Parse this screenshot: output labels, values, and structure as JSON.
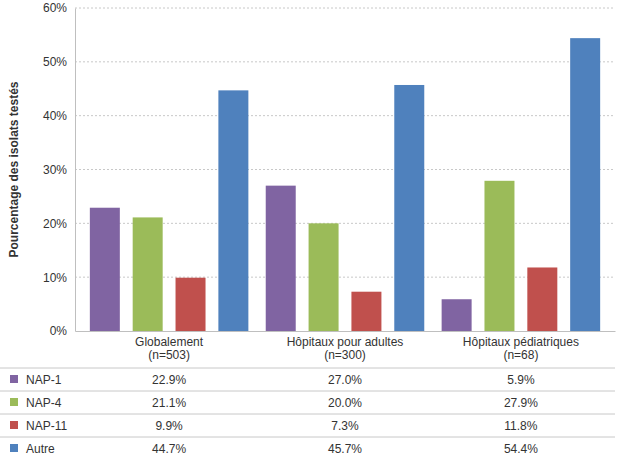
{
  "chart_data": {
    "type": "bar",
    "y_label": "Pourcentage des isolats testés",
    "categories": [
      "Globalement\n(n=503)",
      "Hôpitaux pour adultes\n(n=300)",
      "Hôpitaux pédiatriques\n(n=68)"
    ],
    "series": [
      {
        "name": "NAP-1",
        "color": "#8064a2",
        "values": [
          22.9,
          27.0,
          5.9
        ],
        "value_labels": [
          "22.9%",
          "27.0%",
          "5.9%"
        ]
      },
      {
        "name": "NAP-4",
        "color": "#9bbb59",
        "values": [
          21.1,
          20.0,
          27.9
        ],
        "value_labels": [
          "21.1%",
          "20.0%",
          "27.9%"
        ]
      },
      {
        "name": "NAP-11",
        "color": "#c0504d",
        "values": [
          9.9,
          7.3,
          11.8
        ],
        "value_labels": [
          "9.9%",
          "7.3%",
          "11.8%"
        ]
      },
      {
        "name": "Autre",
        "color": "#4f81bd",
        "values": [
          44.7,
          45.7,
          54.4
        ],
        "value_labels": [
          "44.7%",
          "45.7%",
          "54.4%"
        ]
      }
    ],
    "ylim": [
      0,
      60
    ],
    "yticks": [
      {
        "value": 0,
        "label": "0%"
      },
      {
        "value": 10,
        "label": "10%"
      },
      {
        "value": 20,
        "label": "20%"
      },
      {
        "value": 30,
        "label": "30%"
      },
      {
        "value": 40,
        "label": "40%"
      },
      {
        "value": 50,
        "label": "50%"
      },
      {
        "value": 60,
        "label": "60%"
      }
    ],
    "grid": true,
    "legend": "bottom"
  }
}
